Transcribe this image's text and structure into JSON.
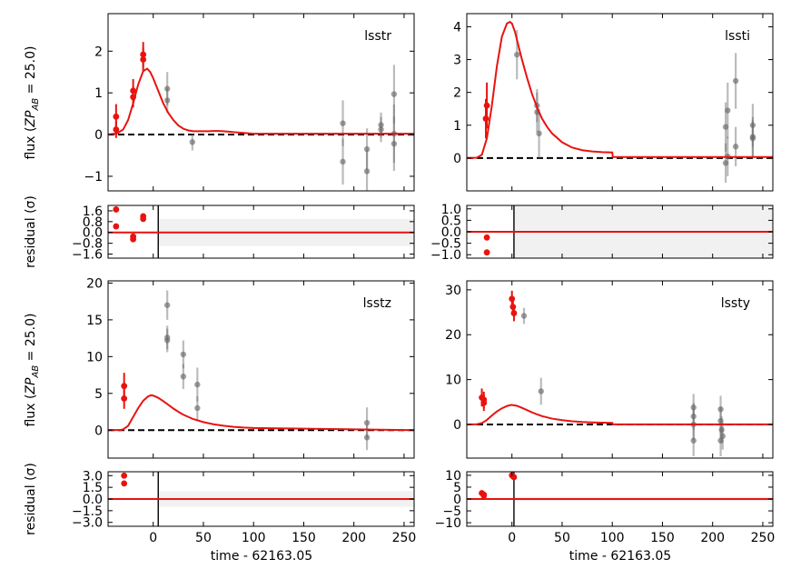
{
  "figure": {
    "xlabel": "time - 62163.05",
    "ylabel_flux": "flux (ZP_AB = 25.0)",
    "ylabel_flux_prefix": "flux (",
    "ylabel_flux_zp": "ZP",
    "ylabel_flux_sub": "AB",
    "ylabel_flux_suffix": " = 25.0)",
    "ylabel_residual": "residual (σ)"
  },
  "colors": {
    "fitted": "#e8130f",
    "unfitted": "#6a6a6a",
    "zero_line": "#000000",
    "band": "#f1f1f1"
  },
  "chart_data": [
    {
      "band": "lsstr",
      "type": "scatter+line",
      "xlim": [
        -45,
        260
      ],
      "xticks": [
        0,
        50,
        100,
        150,
        200,
        250
      ],
      "ylim": [
        -1.35,
        2.9
      ],
      "yticks": [
        -1,
        0,
        1,
        2
      ],
      "ytick_labels": [
        "−1",
        "0",
        "1",
        "2"
      ],
      "model": {
        "x": [
          -45,
          -36,
          -30,
          -25,
          -20,
          -15,
          -10,
          -6,
          -3,
          0,
          5,
          10,
          15,
          20,
          25,
          30,
          35,
          40,
          45,
          50,
          55,
          60,
          65,
          70,
          75,
          80,
          90,
          100,
          260
        ],
        "y": [
          0,
          0.03,
          0.12,
          0.35,
          0.75,
          1.2,
          1.52,
          1.58,
          1.5,
          1.35,
          1.05,
          0.75,
          0.52,
          0.35,
          0.22,
          0.14,
          0.1,
          0.08,
          0.08,
          0.08,
          0.08,
          0.085,
          0.085,
          0.08,
          0.07,
          0.06,
          0.04,
          0.02,
          0.02
        ]
      },
      "fitted_points": [
        {
          "x": -37,
          "y": 0.43,
          "err": 0.3
        },
        {
          "x": -37,
          "y": 0.12,
          "err": 0.2
        },
        {
          "x": -20,
          "y": 1.05,
          "err": 0.28
        },
        {
          "x": -20,
          "y": 0.9,
          "err": 0.25
        },
        {
          "x": -10,
          "y": 1.92,
          "err": 0.3
        },
        {
          "x": -10,
          "y": 1.8,
          "err": 0.28
        }
      ],
      "other_points": [
        {
          "x": 14,
          "y": 1.1,
          "err": 0.4
        },
        {
          "x": 14,
          "y": 0.82,
          "err": 0.3
        },
        {
          "x": 39,
          "y": -0.18,
          "err": 0.2
        },
        {
          "x": 189,
          "y": 0.27,
          "err": 0.55
        },
        {
          "x": 189,
          "y": -0.65,
          "err": 0.55
        },
        {
          "x": 213,
          "y": -0.35,
          "err": 0.5
        },
        {
          "x": 213,
          "y": -0.88,
          "err": 0.5
        },
        {
          "x": 227,
          "y": 0.12,
          "err": 0.3
        },
        {
          "x": 227,
          "y": 0.23,
          "err": 0.3
        },
        {
          "x": 240,
          "y": 0.97,
          "err": 0.7
        },
        {
          "x": 240,
          "y": 0.02,
          "err": 0.7
        },
        {
          "x": 240,
          "y": -0.22,
          "err": 0.65
        }
      ],
      "residual": {
        "ylim": [
          -1.9,
          2.0
        ],
        "yticks": [
          -1.6,
          -0.8,
          0,
          0.8,
          1.6
        ],
        "ytick_labels": [
          "−1.6",
          "−0.8",
          "0.0",
          "0.8",
          "1.6"
        ],
        "band_range": [
          -1,
          1
        ],
        "vline_x": 5,
        "points": [
          {
            "x": -37,
            "y": 1.7
          },
          {
            "x": -37,
            "y": 0.45
          },
          {
            "x": -20,
            "y": -0.3
          },
          {
            "x": -20,
            "y": -0.5
          },
          {
            "x": -10,
            "y": 1.2
          },
          {
            "x": -10,
            "y": 1.0
          }
        ]
      }
    },
    {
      "band": "lssti",
      "type": "scatter+line",
      "xlim": [
        -45,
        260
      ],
      "xticks": [
        0,
        50,
        100,
        150,
        200,
        250
      ],
      "ylim": [
        -1.0,
        4.4
      ],
      "yticks": [
        0,
        1,
        2,
        3,
        4
      ],
      "ytick_labels": [
        "0",
        "1",
        "2",
        "3",
        "4"
      ],
      "model": {
        "x": [
          -45,
          -35,
          -30,
          -25,
          -20,
          -15,
          -10,
          -5,
          -2,
          0,
          3,
          5,
          10,
          15,
          20,
          25,
          30,
          35,
          40,
          50,
          60,
          70,
          80,
          90,
          100,
          100.5,
          260
        ],
        "y": [
          0,
          0.01,
          0.1,
          0.6,
          1.6,
          2.8,
          3.7,
          4.1,
          4.15,
          4.1,
          3.85,
          3.6,
          3.0,
          2.45,
          1.95,
          1.55,
          1.2,
          0.95,
          0.75,
          0.48,
          0.32,
          0.24,
          0.2,
          0.18,
          0.17,
          0.03,
          0.03
        ]
      },
      "fitted_points": [
        {
          "x": -25,
          "y": 1.6,
          "err": 0.7
        },
        {
          "x": -26,
          "y": 1.2,
          "err": 0.6
        }
      ],
      "other_points": [
        {
          "x": 5,
          "y": 3.15,
          "err": 0.75
        },
        {
          "x": 25,
          "y": 1.6,
          "err": 0.5
        },
        {
          "x": 25,
          "y": 1.4,
          "err": 0.6
        },
        {
          "x": 27,
          "y": 0.75,
          "err": 0.75
        },
        {
          "x": 213,
          "y": 0.95,
          "err": 0.75
        },
        {
          "x": 213,
          "y": -0.15,
          "err": 0.6
        },
        {
          "x": 215,
          "y": 1.45,
          "err": 0.85
        },
        {
          "x": 215,
          "y": 0.05,
          "err": 0.6
        },
        {
          "x": 223,
          "y": 2.35,
          "err": 0.85
        },
        {
          "x": 223,
          "y": 0.35,
          "err": 0.6
        },
        {
          "x": 240,
          "y": 1.0,
          "err": 0.65
        },
        {
          "x": 240,
          "y": 0.65,
          "err": 0.6
        },
        {
          "x": 240,
          "y": 0.6,
          "err": 0.55
        }
      ],
      "residual": {
        "ylim": [
          -1.15,
          1.15
        ],
        "yticks": [
          -1,
          -0.5,
          0,
          0.5,
          1
        ],
        "ytick_labels": [
          "−1.0",
          "−0.5",
          "0.0",
          "0.5",
          "1.0"
        ],
        "band_range": [
          -1.15,
          1.15
        ],
        "vline_x": 2,
        "points": [
          {
            "x": -25,
            "y": -0.25
          },
          {
            "x": -25,
            "y": -0.9
          }
        ]
      }
    },
    {
      "band": "lsstz",
      "type": "scatter+line",
      "xlim": [
        -45,
        260
      ],
      "xticks": [
        0,
        50,
        100,
        150,
        200,
        250
      ],
      "ylim": [
        -3.8,
        20.3
      ],
      "yticks": [
        0,
        5,
        10,
        15,
        20
      ],
      "ytick_labels": [
        "0",
        "5",
        "10",
        "15",
        "20"
      ],
      "model": {
        "x": [
          -45,
          -33,
          -30,
          -25,
          -20,
          -15,
          -10,
          -5,
          -2,
          0,
          5,
          10,
          15,
          20,
          25,
          30,
          40,
          50,
          60,
          70,
          80,
          90,
          100,
          260
        ],
        "y": [
          0,
          0.02,
          0.1,
          0.6,
          1.8,
          3.0,
          4.0,
          4.6,
          4.75,
          4.7,
          4.4,
          3.95,
          3.45,
          2.95,
          2.5,
          2.1,
          1.5,
          1.1,
          0.8,
          0.6,
          0.45,
          0.35,
          0.3,
          0.0
        ]
      },
      "fitted_points": [
        {
          "x": -29,
          "y": 6.0,
          "err": 1.8
        },
        {
          "x": -29,
          "y": 4.3,
          "err": 1.4
        }
      ],
      "other_points": [
        {
          "x": 14,
          "y": 17.0,
          "err": 2.0
        },
        {
          "x": 14,
          "y": 12.6,
          "err": 1.6
        },
        {
          "x": 14,
          "y": 12.2,
          "err": 1.6
        },
        {
          "x": 30,
          "y": 10.3,
          "err": 1.9
        },
        {
          "x": 30,
          "y": 7.3,
          "err": 1.7
        },
        {
          "x": 44,
          "y": 6.2,
          "err": 2.3
        },
        {
          "x": 44,
          "y": 3.0,
          "err": 1.6
        },
        {
          "x": 213,
          "y": 1.0,
          "err": 2.1
        },
        {
          "x": 213,
          "y": -1.0,
          "err": 1.7
        }
      ],
      "residual": {
        "ylim": [
          -3.5,
          3.5
        ],
        "yticks": [
          -3,
          -1.5,
          0,
          1.5,
          3
        ],
        "ytick_labels": [
          "−3.0",
          "−1.5",
          "0.0",
          "1.5",
          "3.0"
        ],
        "band_range": [
          -1,
          1
        ],
        "vline_x": 5,
        "points": [
          {
            "x": -29,
            "y": 3.0
          },
          {
            "x": -29,
            "y": 2.0
          }
        ]
      }
    },
    {
      "band": "lssty",
      "type": "scatter+line",
      "xlim": [
        -45,
        260
      ],
      "xticks": [
        0,
        50,
        100,
        150,
        200,
        250
      ],
      "ylim": [
        -7.5,
        32.0
      ],
      "yticks": [
        0,
        10,
        20,
        30
      ],
      "ytick_labels": [
        "0",
        "10",
        "20",
        "30"
      ],
      "model": {
        "x": [
          -45,
          -35,
          -30,
          -25,
          -20,
          -15,
          -10,
          -5,
          -2,
          0,
          5,
          10,
          15,
          20,
          25,
          30,
          40,
          50,
          60,
          70,
          80,
          90,
          100,
          100.5,
          260
        ],
        "y": [
          0,
          0.05,
          0.3,
          1.0,
          2.0,
          2.9,
          3.6,
          4.1,
          4.3,
          4.35,
          4.15,
          3.7,
          3.2,
          2.7,
          2.25,
          1.85,
          1.3,
          0.95,
          0.7,
          0.55,
          0.45,
          0.4,
          0.35,
          0.02,
          0.02
        ]
      },
      "fitted_points": [
        {
          "x": -30,
          "y": 6.0,
          "err": 2.0
        },
        {
          "x": -28,
          "y": 5.5,
          "err": 1.8
        },
        {
          "x": -28,
          "y": 4.8,
          "err": 1.8
        },
        {
          "x": 0,
          "y": 28.0,
          "err": 1.8
        },
        {
          "x": 1,
          "y": 26.2,
          "err": 1.8
        },
        {
          "x": 2,
          "y": 24.8,
          "err": 1.8
        }
      ],
      "other_points": [
        {
          "x": 12,
          "y": 24.2,
          "err": 1.8
        },
        {
          "x": 29,
          "y": 7.4,
          "err": 3.0
        },
        {
          "x": 181,
          "y": 3.8,
          "err": 3.0
        },
        {
          "x": 181,
          "y": 1.8,
          "err": 3.0
        },
        {
          "x": 181,
          "y": 0.0,
          "err": 3.5
        },
        {
          "x": 181,
          "y": -3.6,
          "err": 3.5
        },
        {
          "x": 208,
          "y": 3.4,
          "err": 3.0
        },
        {
          "x": 208,
          "y": 0.8,
          "err": 3.0
        },
        {
          "x": 209,
          "y": -1.2,
          "err": 3.0
        },
        {
          "x": 208,
          "y": -3.6,
          "err": 3.5
        },
        {
          "x": 210,
          "y": -2.6,
          "err": 3.0
        }
      ],
      "residual": {
        "ylim": [
          -11.5,
          11.5
        ],
        "yticks": [
          -10,
          -5,
          0,
          5,
          10
        ],
        "ytick_labels": [
          "−10",
          "−5",
          "0",
          "5",
          "10"
        ],
        "band_range": [
          -1,
          1
        ],
        "vline_x": 2,
        "points": [
          {
            "x": -30,
            "y": 2.5
          },
          {
            "x": -28,
            "y": 1.8
          },
          {
            "x": -28,
            "y": 1.4
          },
          {
            "x": 0,
            "y": 10.0
          },
          {
            "x": 1,
            "y": 9.6
          },
          {
            "x": 2,
            "y": 9.2
          }
        ]
      }
    }
  ]
}
